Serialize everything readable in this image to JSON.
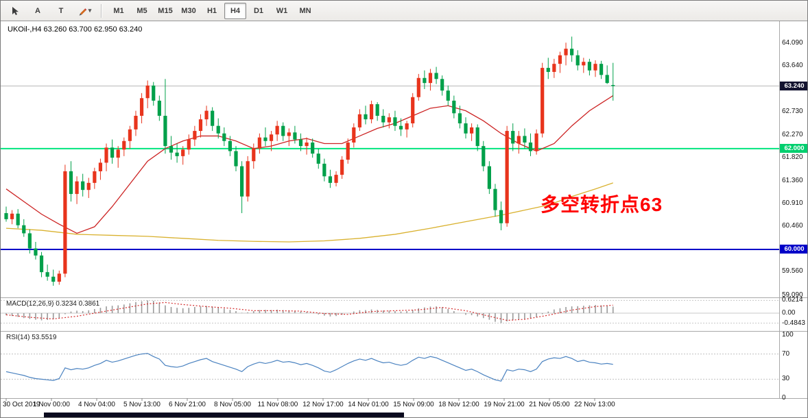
{
  "toolbar": {
    "tool_a": "A",
    "tool_t": "T",
    "timeframes": [
      "M1",
      "M5",
      "M15",
      "M30",
      "H1",
      "H4",
      "D1",
      "W1",
      "MN"
    ],
    "active_timeframe": "H4"
  },
  "annotation": {
    "text": "多空转折点63",
    "color": "#ff0000"
  },
  "chart_data": [
    {
      "type": "candlestick",
      "title": "UKOil-,H4 63.260 63.700 62.950 63.240",
      "symbol": "UKOil-",
      "timeframe": "H4",
      "ohlc_legend": {
        "open": "63.260",
        "high": "63.700",
        "low": "62.950",
        "close": "63.240"
      },
      "up_color": "#e8341c",
      "down_color": "#00a04a",
      "y_range": [
        59.09,
        64.09
      ],
      "y_ticks": [
        "64.090",
        "63.640",
        "62.730",
        "62.270",
        "61.820",
        "61.360",
        "60.910",
        "60.460",
        "59.560",
        "59.090"
      ],
      "x_labels": [
        "30 Oct 2019",
        "1 Nov 00:00",
        "4 Nov 04:00",
        "5 Nov 13:00",
        "6 Nov 21:00",
        "8 Nov 05:00",
        "11 Nov 08:00",
        "12 Nov 17:00",
        "14 Nov 01:00",
        "15 Nov 09:00",
        "18 Nov 12:00",
        "19 Nov 21:00",
        "21 Nov 05:00",
        "22 Nov 13:00"
      ],
      "hlines": [
        {
          "price": 63.24,
          "label": "63.240",
          "line_color": "#b8b8b8",
          "badge_color": "#13132f",
          "width": 1
        },
        {
          "price": 62.0,
          "label": "62.000",
          "line_color": "#00e57e",
          "badge_color": "#00cf6e",
          "width": 2
        },
        {
          "price": 60.0,
          "label": "60.000",
          "line_color": "#0000c8",
          "badge_color": "#0000c8",
          "width": 2
        }
      ],
      "ma_fast": {
        "color": "#cc2222",
        "points": [
          [
            0,
            61.2
          ],
          [
            3,
            60.95
          ],
          [
            6,
            60.7
          ],
          [
            9,
            60.5
          ],
          [
            12,
            60.32
          ],
          [
            15,
            60.45
          ],
          [
            18,
            60.85
          ],
          [
            21,
            61.3
          ],
          [
            24,
            61.75
          ],
          [
            27,
            62.0
          ],
          [
            30,
            62.15
          ],
          [
            33,
            62.25
          ],
          [
            36,
            62.25
          ],
          [
            39,
            62.15
          ],
          [
            42,
            62.0
          ],
          [
            45,
            62.05
          ],
          [
            48,
            62.15
          ],
          [
            51,
            62.2
          ],
          [
            54,
            62.1
          ],
          [
            57,
            62.1
          ],
          [
            60,
            62.25
          ],
          [
            63,
            62.4
          ],
          [
            66,
            62.5
          ],
          [
            69,
            62.65
          ],
          [
            72,
            62.8
          ],
          [
            75,
            62.85
          ],
          [
            78,
            62.75
          ],
          [
            81,
            62.55
          ],
          [
            84,
            62.3
          ],
          [
            87,
            62.1
          ],
          [
            90,
            61.95
          ],
          [
            93,
            62.1
          ],
          [
            96,
            62.45
          ],
          [
            99,
            62.75
          ],
          [
            101,
            62.9
          ],
          [
            103,
            63.05
          ]
        ]
      },
      "ma_slow": {
        "color": "#d9b12e",
        "points": [
          [
            0,
            60.42
          ],
          [
            6,
            60.38
          ],
          [
            12,
            60.3
          ],
          [
            18,
            60.28
          ],
          [
            24,
            60.26
          ],
          [
            30,
            60.22
          ],
          [
            36,
            60.18
          ],
          [
            42,
            60.16
          ],
          [
            48,
            60.15
          ],
          [
            54,
            60.17
          ],
          [
            60,
            60.22
          ],
          [
            66,
            60.3
          ],
          [
            72,
            60.42
          ],
          [
            78,
            60.55
          ],
          [
            84,
            60.68
          ],
          [
            88,
            60.78
          ],
          [
            92,
            60.88
          ],
          [
            96,
            61.05
          ],
          [
            100,
            61.2
          ],
          [
            103,
            61.32
          ]
        ]
      },
      "candles": [
        [
          60.72,
          60.85,
          60.55,
          60.6
        ],
        [
          60.6,
          60.78,
          60.5,
          60.71
        ],
        [
          60.71,
          60.8,
          60.42,
          60.48
        ],
        [
          60.48,
          60.6,
          60.25,
          60.32
        ],
        [
          60.32,
          60.4,
          59.92,
          60.02
        ],
        [
          60.02,
          60.15,
          59.8,
          59.88
        ],
        [
          59.88,
          59.95,
          59.45,
          59.55
        ],
        [
          59.55,
          59.7,
          59.38,
          59.46
        ],
        [
          59.46,
          59.6,
          59.28,
          59.36
        ],
        [
          59.36,
          59.58,
          59.3,
          59.52
        ],
        [
          59.52,
          61.68,
          59.45,
          61.55
        ],
        [
          61.55,
          61.75,
          60.95,
          61.1
        ],
        [
          61.1,
          61.45,
          60.9,
          61.35
        ],
        [
          61.35,
          61.5,
          61.05,
          61.18
        ],
        [
          61.18,
          61.42,
          61.02,
          61.32
        ],
        [
          61.32,
          61.62,
          61.2,
          61.55
        ],
        [
          61.55,
          61.8,
          61.38,
          61.72
        ],
        [
          61.72,
          62.1,
          61.55,
          62.02
        ],
        [
          62.02,
          62.18,
          61.7,
          61.82
        ],
        [
          61.82,
          62.05,
          61.62,
          61.98
        ],
        [
          61.98,
          62.22,
          61.85,
          62.15
        ],
        [
          62.15,
          62.45,
          62.0,
          62.38
        ],
        [
          62.38,
          62.75,
          62.25,
          62.65
        ],
        [
          62.65,
          63.1,
          62.5,
          63.0
        ],
        [
          63.0,
          63.35,
          62.8,
          63.25
        ],
        [
          63.25,
          63.32,
          62.85,
          62.95
        ],
        [
          62.95,
          63.05,
          62.55,
          62.65
        ],
        [
          62.65,
          63.38,
          61.9,
          62.05
        ],
        [
          62.05,
          62.25,
          61.78,
          61.92
        ],
        [
          61.92,
          62.1,
          61.72,
          61.85
        ],
        [
          61.85,
          62.05,
          61.68,
          61.98
        ],
        [
          61.98,
          62.28,
          61.88,
          62.18
        ],
        [
          62.18,
          62.45,
          62.05,
          62.35
        ],
        [
          62.35,
          62.68,
          62.22,
          62.58
        ],
        [
          62.58,
          62.85,
          62.45,
          62.75
        ],
        [
          62.75,
          62.82,
          62.35,
          62.45
        ],
        [
          62.45,
          62.6,
          62.2,
          62.3
        ],
        [
          62.3,
          62.42,
          62.05,
          62.15
        ],
        [
          62.15,
          62.25,
          61.85,
          61.95
        ],
        [
          61.95,
          62.05,
          61.55,
          61.65
        ],
        [
          61.65,
          61.75,
          60.72,
          61.05
        ],
        [
          61.05,
          61.85,
          60.95,
          61.75
        ],
        [
          61.75,
          62.1,
          61.6,
          62.0
        ],
        [
          62.0,
          62.3,
          61.9,
          62.22
        ],
        [
          62.22,
          62.42,
          62.05,
          62.15
        ],
        [
          62.15,
          62.35,
          61.95,
          62.28
        ],
        [
          62.28,
          62.55,
          62.15,
          62.45
        ],
        [
          62.45,
          62.52,
          62.15,
          62.25
        ],
        [
          62.25,
          62.4,
          62.05,
          62.32
        ],
        [
          62.32,
          62.45,
          62.1,
          62.18
        ],
        [
          62.18,
          62.3,
          61.95,
          62.05
        ],
        [
          62.05,
          62.22,
          61.88,
          62.12
        ],
        [
          62.12,
          62.2,
          61.82,
          61.9
        ],
        [
          61.9,
          62.0,
          61.6,
          61.7
        ],
        [
          61.7,
          61.8,
          61.35,
          61.45
        ],
        [
          61.45,
          61.58,
          61.22,
          61.32
        ],
        [
          61.32,
          61.55,
          61.25,
          61.48
        ],
        [
          61.48,
          61.85,
          61.4,
          61.78
        ],
        [
          61.78,
          62.2,
          61.7,
          62.12
        ],
        [
          62.12,
          62.5,
          62.02,
          62.42
        ],
        [
          62.42,
          62.78,
          62.35,
          62.68
        ],
        [
          62.68,
          62.85,
          62.48,
          62.58
        ],
        [
          62.58,
          62.95,
          62.5,
          62.88
        ],
        [
          62.88,
          62.92,
          62.55,
          62.65
        ],
        [
          62.65,
          62.78,
          62.42,
          62.52
        ],
        [
          62.52,
          62.7,
          62.4,
          62.62
        ],
        [
          62.62,
          62.75,
          62.35,
          62.45
        ],
        [
          62.45,
          62.6,
          62.25,
          62.38
        ],
        [
          62.38,
          62.55,
          62.22,
          62.5
        ],
        [
          62.5,
          63.1,
          62.42,
          63.02
        ],
        [
          63.02,
          63.48,
          62.95,
          63.4
        ],
        [
          63.4,
          63.55,
          63.18,
          63.3
        ],
        [
          63.3,
          63.58,
          63.15,
          63.5
        ],
        [
          63.5,
          63.62,
          63.28,
          63.38
        ],
        [
          63.38,
          63.45,
          63.05,
          63.15
        ],
        [
          63.15,
          63.25,
          62.85,
          62.95
        ],
        [
          62.95,
          63.05,
          62.6,
          62.7
        ],
        [
          62.7,
          62.85,
          62.4,
          62.5
        ],
        [
          62.5,
          62.62,
          62.2,
          62.3
        ],
        [
          62.3,
          62.5,
          62.15,
          62.42
        ],
        [
          62.42,
          62.48,
          61.95,
          62.05
        ],
        [
          62.05,
          62.15,
          61.55,
          61.65
        ],
        [
          61.65,
          61.75,
          61.1,
          61.2
        ],
        [
          61.2,
          61.3,
          60.65,
          60.78
        ],
        [
          60.78,
          60.95,
          60.38,
          60.52
        ],
        [
          60.52,
          62.45,
          60.45,
          62.35
        ],
        [
          62.35,
          62.5,
          61.95,
          62.1
        ],
        [
          62.1,
          62.35,
          61.9,
          62.25
        ],
        [
          62.25,
          62.4,
          62.0,
          62.12
        ],
        [
          62.12,
          62.3,
          61.85,
          61.95
        ],
        [
          61.95,
          62.38,
          61.88,
          62.3
        ],
        [
          62.3,
          63.7,
          62.22,
          63.6
        ],
        [
          63.6,
          63.8,
          63.38,
          63.52
        ],
        [
          63.52,
          63.78,
          63.4,
          63.68
        ],
        [
          63.68,
          63.92,
          63.5,
          63.85
        ],
        [
          63.85,
          64.1,
          63.65,
          63.98
        ],
        [
          63.98,
          64.22,
          63.72,
          63.85
        ],
        [
          63.85,
          63.95,
          63.55,
          63.65
        ],
        [
          63.65,
          63.8,
          63.5,
          63.72
        ],
        [
          63.72,
          63.78,
          63.45,
          63.55
        ],
        [
          63.55,
          63.75,
          63.42,
          63.68
        ],
        [
          63.68,
          63.74,
          63.38,
          63.46
        ],
        [
          63.46,
          63.65,
          63.28,
          63.3
        ],
        [
          63.26,
          63.7,
          62.95,
          63.24
        ]
      ]
    },
    {
      "type": "bar",
      "name": "MACD(12,26,9)",
      "label": "MACD(12,26,9) 0.3234 0.3861",
      "current_macd": "0.3234",
      "current_signal": "0.3861",
      "bar_color": "#9a9a9a",
      "signal_color": "#d42a2a",
      "y_ticks": [
        "0.6214",
        "0.00",
        "-0.4843"
      ],
      "values": [
        -0.1,
        -0.14,
        -0.18,
        -0.24,
        -0.28,
        -0.32,
        -0.35,
        -0.33,
        -0.3,
        -0.25,
        -0.05,
        0.08,
        0.12,
        0.1,
        0.14,
        0.2,
        0.26,
        0.33,
        0.36,
        0.38,
        0.42,
        0.48,
        0.54,
        0.58,
        0.62,
        0.6,
        0.52,
        0.38,
        0.3,
        0.26,
        0.24,
        0.26,
        0.3,
        0.33,
        0.35,
        0.32,
        0.27,
        0.22,
        0.16,
        0.1,
        0.02,
        0.04,
        0.1,
        0.15,
        0.16,
        0.15,
        0.17,
        0.15,
        0.14,
        0.12,
        0.08,
        0.05,
        0.0,
        -0.06,
        -0.12,
        -0.16,
        -0.14,
        -0.08,
        0.0,
        0.08,
        0.14,
        0.15,
        0.18,
        0.16,
        0.13,
        0.12,
        0.1,
        0.08,
        0.1,
        0.16,
        0.24,
        0.28,
        0.32,
        0.33,
        0.28,
        0.2,
        0.1,
        0.0,
        -0.08,
        -0.1,
        -0.16,
        -0.24,
        -0.32,
        -0.42,
        -0.48,
        -0.4,
        -0.34,
        -0.3,
        -0.28,
        -0.26,
        -0.2,
        -0.05,
        0.08,
        0.18,
        0.24,
        0.3,
        0.33,
        0.34,
        0.36,
        0.38,
        0.4,
        0.38,
        0.35,
        0.32
      ],
      "signal_points": [
        [
          0,
          -0.08
        ],
        [
          4,
          -0.2
        ],
        [
          8,
          -0.28
        ],
        [
          12,
          -0.15
        ],
        [
          16,
          0.05
        ],
        [
          20,
          0.25
        ],
        [
          24,
          0.45
        ],
        [
          27,
          0.52
        ],
        [
          30,
          0.42
        ],
        [
          34,
          0.32
        ],
        [
          38,
          0.24
        ],
        [
          42,
          0.12
        ],
        [
          46,
          0.12
        ],
        [
          50,
          0.1
        ],
        [
          54,
          -0.02
        ],
        [
          58,
          -0.06
        ],
        [
          62,
          0.08
        ],
        [
          66,
          0.12
        ],
        [
          70,
          0.16
        ],
        [
          74,
          0.28
        ],
        [
          78,
          0.12
        ],
        [
          82,
          -0.15
        ],
        [
          85,
          -0.35
        ],
        [
          88,
          -0.3
        ],
        [
          92,
          -0.1
        ],
        [
          96,
          0.15
        ],
        [
          100,
          0.32
        ],
        [
          103,
          0.39
        ]
      ]
    },
    {
      "type": "line",
      "name": "RSI(14)",
      "label": "RSI(14) 53.5519",
      "current": "53.5519",
      "line_color": "#4a82c0",
      "levels": [
        70,
        30
      ],
      "y_ticks": [
        "100",
        "70",
        "30",
        "0"
      ],
      "values": [
        42,
        40,
        38,
        36,
        33,
        31,
        30,
        29,
        28,
        31,
        48,
        45,
        47,
        46,
        48,
        52,
        55,
        60,
        57,
        59,
        62,
        65,
        68,
        70,
        71,
        66,
        62,
        52,
        50,
        49,
        51,
        55,
        58,
        61,
        63,
        58,
        55,
        52,
        49,
        46,
        42,
        50,
        54,
        57,
        55,
        57,
        60,
        57,
        58,
        56,
        53,
        55,
        52,
        48,
        43,
        41,
        45,
        50,
        55,
        59,
        62,
        60,
        63,
        59,
        56,
        57,
        54,
        52,
        54,
        60,
        65,
        63,
        66,
        64,
        60,
        56,
        52,
        48,
        44,
        46,
        42,
        37,
        33,
        29,
        27,
        45,
        43,
        46,
        45,
        42,
        46,
        58,
        62,
        64,
        63,
        66,
        63,
        58,
        60,
        57,
        56,
        54,
        55,
        53.6
      ]
    }
  ]
}
